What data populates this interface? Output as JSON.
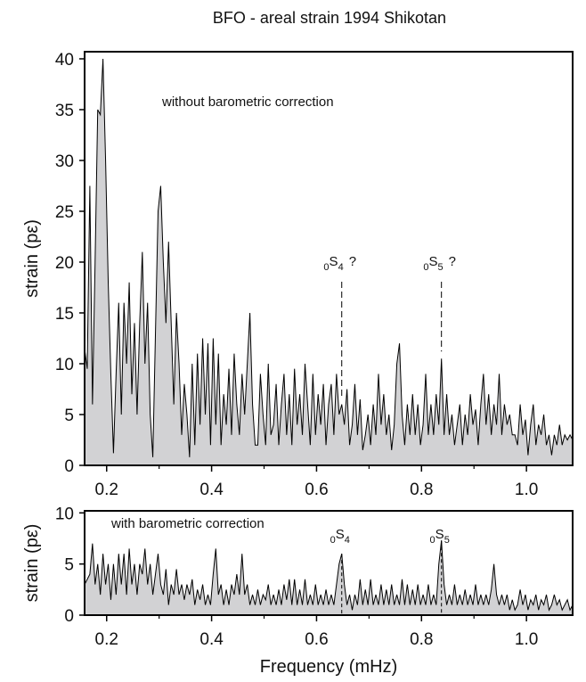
{
  "chart_data": [
    {
      "type": "area",
      "title": "BFO - areal strain  1994 Shikotan",
      "ylabel": "strain (pε)",
      "annotation_text": "without barometric correction",
      "color": "#d2d2d4",
      "line_color": "#000000",
      "xlim": [
        0.158,
        1.088
      ],
      "ylim": [
        0,
        40.7
      ],
      "xticks": [
        0.2,
        0.4,
        0.6,
        0.8,
        {
          "value": 1,
          "label": "1.0"
        }
      ],
      "xminorticks": [
        0.3,
        0.5,
        0.7,
        0.9
      ],
      "yticks": [
        0,
        5,
        10,
        15,
        20,
        25,
        30,
        35,
        40
      ],
      "markers": [
        {
          "x": 0.648,
          "pre": "0",
          "mode": "S",
          "n": "4",
          "suffix": "?"
        },
        {
          "x": 0.838,
          "pre": "0",
          "mode": "S",
          "n": "5",
          "suffix": "?"
        }
      ],
      "x": [
        0.158,
        0.163,
        0.168,
        0.173,
        0.178,
        0.183,
        0.188,
        0.193,
        0.198,
        0.203,
        0.208,
        0.213,
        0.218,
        0.223,
        0.228,
        0.233,
        0.238,
        0.243,
        0.248,
        0.253,
        0.258,
        0.263,
        0.268,
        0.273,
        0.278,
        0.283,
        0.288,
        0.293,
        0.298,
        0.303,
        0.308,
        0.313,
        0.318,
        0.323,
        0.328,
        0.333,
        0.338,
        0.343,
        0.348,
        0.353,
        0.358,
        0.363,
        0.368,
        0.373,
        0.378,
        0.383,
        0.388,
        0.393,
        0.398,
        0.403,
        0.408,
        0.413,
        0.418,
        0.423,
        0.428,
        0.433,
        0.438,
        0.443,
        0.448,
        0.453,
        0.458,
        0.463,
        0.468,
        0.473,
        0.478,
        0.483,
        0.488,
        0.493,
        0.498,
        0.503,
        0.508,
        0.513,
        0.518,
        0.523,
        0.528,
        0.533,
        0.538,
        0.543,
        0.548,
        0.553,
        0.558,
        0.563,
        0.568,
        0.573,
        0.578,
        0.583,
        0.588,
        0.593,
        0.598,
        0.603,
        0.608,
        0.613,
        0.618,
        0.623,
        0.628,
        0.633,
        0.638,
        0.643,
        0.648,
        0.653,
        0.658,
        0.663,
        0.668,
        0.673,
        0.678,
        0.683,
        0.688,
        0.693,
        0.698,
        0.703,
        0.708,
        0.713,
        0.718,
        0.723,
        0.728,
        0.733,
        0.738,
        0.743,
        0.748,
        0.753,
        0.758,
        0.763,
        0.768,
        0.773,
        0.778,
        0.783,
        0.788,
        0.793,
        0.798,
        0.803,
        0.808,
        0.813,
        0.818,
        0.823,
        0.828,
        0.833,
        0.838,
        0.843,
        0.848,
        0.853,
        0.858,
        0.863,
        0.868,
        0.873,
        0.878,
        0.883,
        0.888,
        0.893,
        0.898,
        0.903,
        0.908,
        0.913,
        0.918,
        0.923,
        0.928,
        0.933,
        0.938,
        0.943,
        0.948,
        0.953,
        0.958,
        0.963,
        0.968,
        0.973,
        0.978,
        0.983,
        0.988,
        0.993,
        0.998,
        1.003,
        1.008,
        1.013,
        1.018,
        1.023,
        1.028,
        1.033,
        1.038,
        1.043,
        1.048,
        1.053,
        1.058,
        1.063,
        1.068,
        1.073,
        1.078,
        1.083,
        1.088
      ],
      "values": [
        11.5,
        9.5,
        27.5,
        6,
        20,
        35,
        34.5,
        40,
        30,
        18,
        9,
        1.2,
        9,
        16,
        5,
        16,
        10,
        18,
        7,
        14,
        5,
        14,
        21,
        10,
        16,
        5,
        0.8,
        13,
        25,
        27.5,
        20,
        14,
        22,
        14,
        6,
        15,
        10,
        3,
        8,
        5,
        0.8,
        10,
        2,
        11,
        4,
        12.5,
        5,
        12,
        2,
        12.5,
        4,
        11,
        2,
        7,
        4,
        9.5,
        3,
        11,
        6,
        3,
        9,
        5,
        10,
        15,
        6,
        2,
        2,
        9,
        5,
        2,
        10,
        3,
        4,
        8,
        2,
        6,
        9,
        3,
        7,
        2,
        9.5,
        4,
        7,
        3,
        10,
        6,
        2,
        9,
        3,
        7,
        4,
        8,
        2,
        6,
        8,
        3,
        9,
        5,
        6,
        4,
        7.5,
        2,
        4,
        8,
        3,
        6.5,
        1.5,
        3,
        5,
        2,
        6,
        3,
        9,
        4,
        7,
        3,
        5,
        1.5,
        4,
        10,
        12,
        5,
        2,
        6,
        3,
        7,
        3,
        6,
        2,
        4,
        9,
        3,
        6,
        3,
        7,
        4,
        10.5,
        3,
        7,
        3,
        5,
        2,
        4,
        6,
        2,
        5,
        3,
        7,
        4,
        5.5,
        2,
        6,
        9,
        4,
        7,
        3,
        6,
        4,
        9,
        3,
        6,
        4,
        5,
        3,
        3,
        2,
        6,
        3,
        4.5,
        1,
        4,
        6,
        2,
        4,
        3,
        5,
        2,
        3,
        1,
        3,
        2,
        4,
        2,
        3,
        2.5,
        3,
        2.5
      ]
    },
    {
      "type": "area",
      "ylabel": "strain (pε)",
      "xlabel": "Frequency (mHz)",
      "annotation_text": "with barometric correction",
      "color": "#d2d2d4",
      "line_color": "#000000",
      "xlim": [
        0.158,
        1.088
      ],
      "ylim": [
        0,
        10.2
      ],
      "xticks": [
        0.2,
        0.4,
        0.6,
        0.8,
        {
          "value": 1,
          "label": "1.0"
        }
      ],
      "xminorticks": [
        0.3,
        0.5,
        0.7,
        0.9
      ],
      "yticks": [
        0,
        5,
        10
      ],
      "markers": [
        {
          "x": 0.648,
          "pre": "0",
          "mode": "S",
          "n": "4"
        },
        {
          "x": 0.838,
          "pre": "0",
          "mode": "S",
          "n": "5"
        }
      ],
      "x": [
        0.158,
        0.163,
        0.168,
        0.173,
        0.178,
        0.183,
        0.188,
        0.193,
        0.198,
        0.203,
        0.208,
        0.213,
        0.218,
        0.223,
        0.228,
        0.233,
        0.238,
        0.243,
        0.248,
        0.253,
        0.258,
        0.263,
        0.268,
        0.273,
        0.278,
        0.283,
        0.288,
        0.293,
        0.298,
        0.303,
        0.308,
        0.313,
        0.318,
        0.323,
        0.328,
        0.333,
        0.338,
        0.343,
        0.348,
        0.353,
        0.358,
        0.363,
        0.368,
        0.373,
        0.378,
        0.383,
        0.388,
        0.393,
        0.398,
        0.403,
        0.408,
        0.413,
        0.418,
        0.423,
        0.428,
        0.433,
        0.438,
        0.443,
        0.448,
        0.453,
        0.458,
        0.463,
        0.468,
        0.473,
        0.478,
        0.483,
        0.488,
        0.493,
        0.498,
        0.503,
        0.508,
        0.513,
        0.518,
        0.523,
        0.528,
        0.533,
        0.538,
        0.543,
        0.548,
        0.553,
        0.558,
        0.563,
        0.568,
        0.573,
        0.578,
        0.583,
        0.588,
        0.593,
        0.598,
        0.603,
        0.608,
        0.613,
        0.618,
        0.623,
        0.628,
        0.633,
        0.638,
        0.643,
        0.648,
        0.653,
        0.658,
        0.663,
        0.668,
        0.673,
        0.678,
        0.683,
        0.688,
        0.693,
        0.698,
        0.703,
        0.708,
        0.713,
        0.718,
        0.723,
        0.728,
        0.733,
        0.738,
        0.743,
        0.748,
        0.753,
        0.758,
        0.763,
        0.768,
        0.773,
        0.778,
        0.783,
        0.788,
        0.793,
        0.798,
        0.803,
        0.808,
        0.813,
        0.818,
        0.823,
        0.828,
        0.833,
        0.838,
        0.843,
        0.848,
        0.853,
        0.858,
        0.863,
        0.868,
        0.873,
        0.878,
        0.883,
        0.888,
        0.893,
        0.898,
        0.903,
        0.908,
        0.913,
        0.918,
        0.923,
        0.928,
        0.933,
        0.938,
        0.943,
        0.948,
        0.953,
        0.958,
        0.963,
        0.968,
        0.973,
        0.978,
        0.983,
        0.988,
        0.993,
        0.998,
        1.003,
        1.008,
        1.013,
        1.018,
        1.023,
        1.028,
        1.033,
        1.038,
        1.043,
        1.048,
        1.053,
        1.058,
        1.063,
        1.068,
        1.073,
        1.078,
        1.083,
        1.088
      ],
      "values": [
        3,
        3.5,
        4,
        7,
        3,
        5,
        2,
        6,
        3,
        5,
        1.5,
        5,
        2,
        6,
        3,
        6,
        2,
        6.5,
        3,
        5,
        2,
        5,
        4,
        6.5,
        3,
        5,
        2,
        4,
        6,
        3,
        2,
        4.5,
        1,
        3,
        2,
        4.5,
        2,
        3,
        1.5,
        3,
        2,
        3.5,
        1,
        2.5,
        1.5,
        3,
        1,
        2,
        1,
        4,
        6.5,
        2,
        3,
        1,
        2.5,
        1,
        3,
        2,
        4,
        2,
        6,
        2,
        3,
        1,
        2,
        1,
        2.5,
        1,
        2,
        1.5,
        3,
        1,
        2,
        1,
        2.5,
        1,
        3,
        1.5,
        3.5,
        1,
        3.5,
        1,
        2.5,
        1,
        3.5,
        1,
        2,
        1,
        3,
        1,
        2,
        1,
        2.5,
        1,
        2,
        1,
        3,
        5,
        6,
        3,
        1,
        2,
        0.5,
        2,
        1,
        3.5,
        1,
        2.5,
        1,
        3.5,
        1,
        2,
        1,
        3,
        1,
        2.5,
        1,
        3,
        1,
        2,
        1,
        3.5,
        1,
        3,
        1,
        2.5,
        1,
        3,
        1,
        2,
        1,
        3,
        1,
        2,
        1,
        5,
        7.3,
        3,
        1,
        2,
        1,
        3,
        1,
        2,
        1,
        2.5,
        1,
        2,
        1,
        3,
        1,
        2,
        1,
        2,
        1,
        2.5,
        5,
        2,
        1,
        2,
        1,
        2,
        0.5,
        1.5,
        0.5,
        1,
        2.5,
        1,
        2,
        0.5,
        1.5,
        1,
        2,
        0.5,
        1.5,
        1,
        2,
        0.5,
        1,
        2,
        1,
        1.5,
        0.5,
        1,
        1.5,
        0.5,
        1
      ]
    }
  ]
}
